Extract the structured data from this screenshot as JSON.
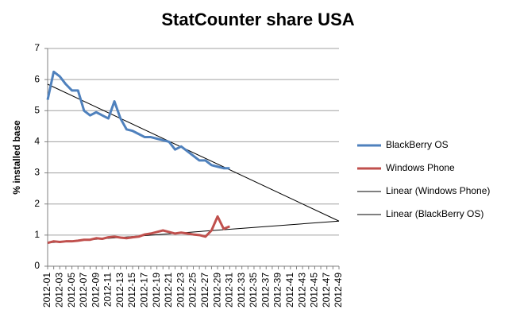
{
  "chart_data": {
    "type": "line",
    "title": "StatCounter share USA",
    "y_label": "% installed base",
    "categories": [
      "2012-01",
      null,
      "2012-03",
      null,
      "2012-05",
      null,
      "2012-07",
      null,
      "2012-09",
      null,
      "2012-11",
      null,
      "2012-13",
      null,
      "2012-15",
      null,
      "2012-17",
      null,
      "2012-19",
      null,
      "2012-21",
      null,
      "2012-23",
      null,
      "2012-25",
      null,
      "2012-27",
      null,
      "2012-29",
      null,
      "2012-31",
      null,
      "2012-33",
      null,
      "2012-35",
      null,
      "2012-37",
      null,
      "2012-39",
      null,
      "2012-41",
      null,
      "2012-43",
      null,
      "2012-45",
      null,
      "2012-47",
      null,
      "2012-49"
    ],
    "series": [
      {
        "name": "BlackBerry OS",
        "color": "#4f81bd",
        "values": [
          5.35,
          6.25,
          6.1,
          5.85,
          5.65,
          5.65,
          5.0,
          4.85,
          4.95,
          4.85,
          4.75,
          5.3,
          4.75,
          4.4,
          4.35,
          4.25,
          4.15,
          4.15,
          4.1,
          4.05,
          4.0,
          3.75,
          3.85,
          3.7,
          3.55,
          3.4,
          3.4,
          3.25,
          3.2,
          3.15,
          3.15,
          null,
          null,
          null,
          null,
          null,
          null,
          null,
          null,
          null,
          null,
          null,
          null,
          null,
          null,
          null,
          null,
          null,
          null
        ]
      },
      {
        "name": "Windows Phone",
        "color": "#c0504d",
        "values": [
          0.75,
          0.8,
          0.78,
          0.8,
          0.8,
          0.82,
          0.85,
          0.85,
          0.9,
          0.88,
          0.93,
          0.95,
          0.92,
          0.9,
          0.93,
          0.95,
          1.02,
          1.05,
          1.1,
          1.15,
          1.1,
          1.05,
          1.08,
          1.05,
          1.02,
          1.0,
          0.95,
          1.15,
          1.6,
          1.2,
          1.28,
          null,
          null,
          null,
          null,
          null,
          null,
          null,
          null,
          null,
          null,
          null,
          null,
          null,
          null,
          null,
          null,
          null,
          null
        ]
      }
    ],
    "trendlines": [
      {
        "name": "Linear (Windows Phone)",
        "color": "#000000",
        "start": 0.75,
        "end": 1.45
      },
      {
        "name": "Linear (BlackBerry OS)",
        "color": "#000000",
        "start": 5.85,
        "end": 1.45
      }
    ],
    "ylim": [
      0,
      7
    ],
    "yticks": [
      0,
      1,
      2,
      3,
      4,
      5,
      6,
      7
    ],
    "grid": true
  }
}
